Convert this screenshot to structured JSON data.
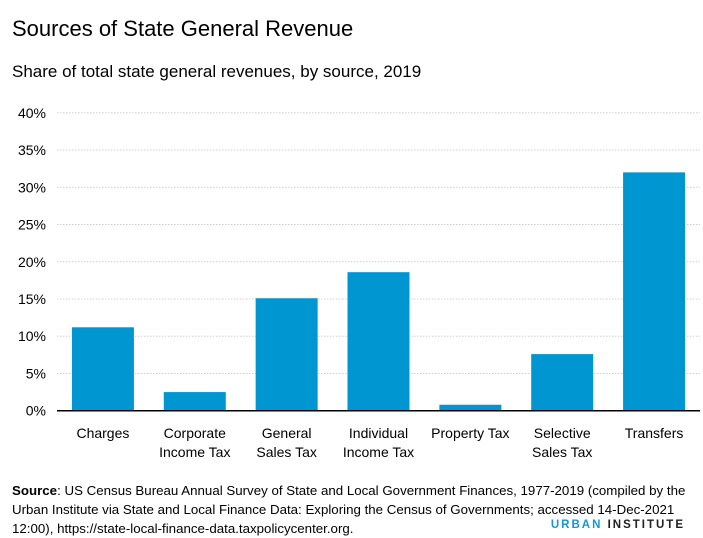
{
  "chart_data": {
    "type": "bar",
    "title": "Sources of State General Revenue",
    "subtitle": "Share of total state general revenues, by source, 2019",
    "categories": [
      [
        "Charges"
      ],
      [
        "Corporate",
        "Income Tax"
      ],
      [
        "General",
        "Sales Tax"
      ],
      [
        "Individual",
        "Income Tax"
      ],
      [
        "Property Tax"
      ],
      [
        "Selective",
        "Sales Tax"
      ],
      [
        "Transfers"
      ]
    ],
    "values": [
      11.2,
      2.5,
      15.1,
      18.6,
      0.8,
      7.6,
      32.0
    ],
    "ylim": [
      0,
      40
    ],
    "yticks": [
      0,
      5,
      10,
      15,
      20,
      25,
      30,
      35,
      40
    ],
    "ytick_labels": [
      "0%",
      "5%",
      "10%",
      "15%",
      "20%",
      "25%",
      "30%",
      "35%",
      "40%"
    ],
    "xlabel": "",
    "ylabel": "",
    "grid": true,
    "bar_color": "#0096d2"
  },
  "source": {
    "label": "Source",
    "text": ": US Census Bureau Annual Survey of State and Local Government Finances, 1977-2019 (compiled by the Urban Institute via State and Local Finance Data: Exploring the Census of Governments; accessed 14-Dec-2021 12:00), https://state-local-finance-data.taxpolicycenter.org."
  },
  "logo": {
    "word1": "URBAN",
    "word2": "INSTITUTE"
  }
}
